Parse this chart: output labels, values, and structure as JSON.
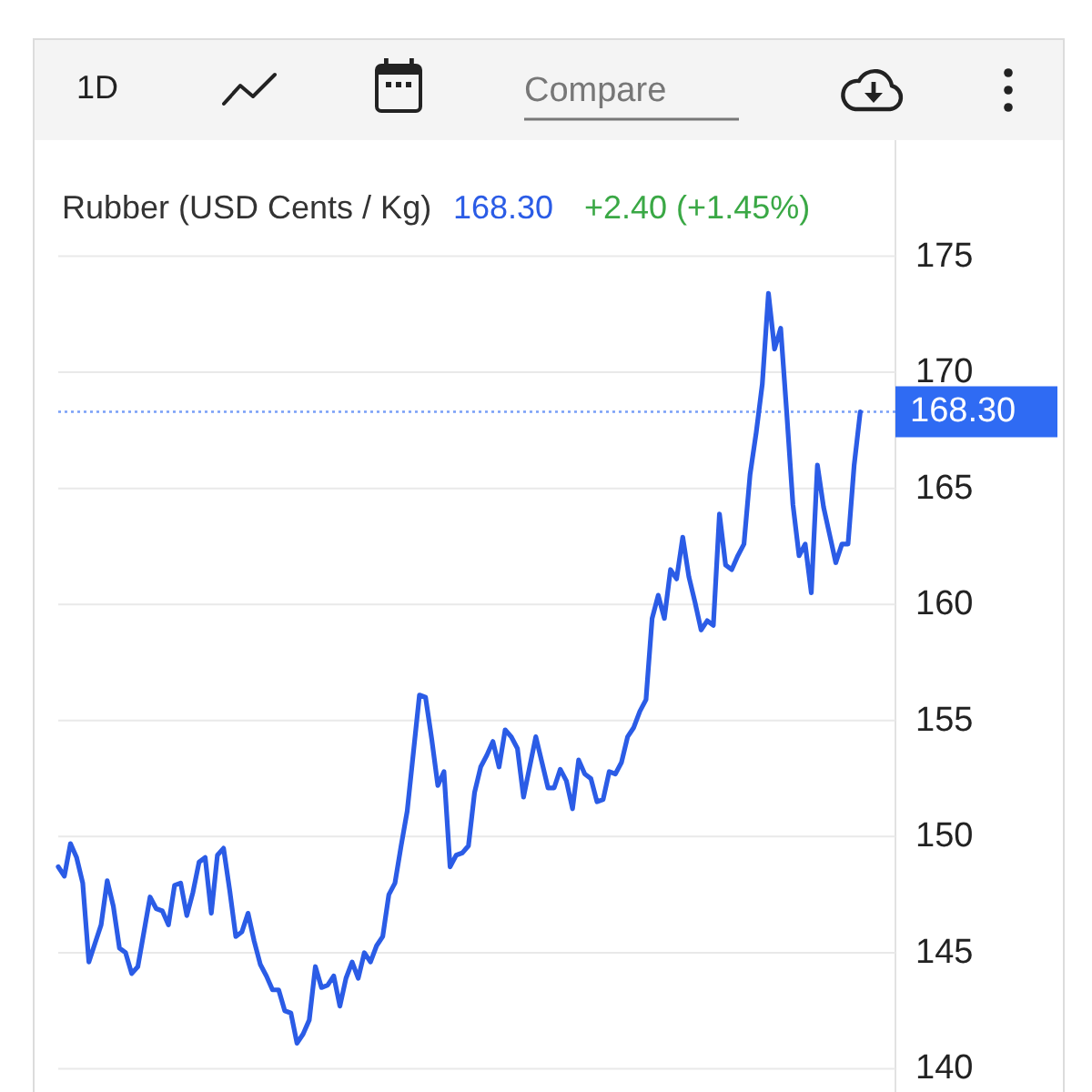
{
  "chart_data": {
    "type": "line",
    "title": "Rubber (USD Cents / Kg)",
    "annotations": [
      "1D",
      "Compare",
      "168.30",
      "+2.40 (+1.45%)"
    ],
    "categories": [
      null,
      null,
      null,
      null,
      null,
      null,
      null,
      null,
      null,
      null,
      null,
      null,
      null,
      null,
      null,
      null,
      null,
      null,
      null,
      null,
      null,
      null,
      null,
      null,
      null,
      null,
      null,
      null,
      null,
      null,
      null,
      null,
      null,
      null,
      null,
      null,
      null,
      null,
      null,
      null,
      null,
      null,
      null,
      null,
      null,
      null,
      null,
      null,
      null,
      null,
      null,
      null,
      null,
      null,
      null,
      null,
      null,
      null,
      null,
      null,
      null,
      null,
      null,
      null,
      null,
      null,
      null,
      null,
      null,
      null,
      null,
      null,
      null,
      null,
      null,
      null,
      null,
      null,
      null,
      null,
      null,
      null,
      null,
      null,
      null,
      null,
      null,
      null,
      null,
      null,
      null,
      null,
      null,
      null,
      null,
      null,
      null,
      null,
      null,
      null,
      null,
      null,
      null,
      null,
      null,
      null,
      null,
      null,
      null,
      null,
      null,
      null,
      null,
      null,
      null,
      null,
      null,
      null,
      null,
      null,
      null,
      null,
      null,
      null,
      null,
      null,
      null,
      null,
      null,
      null,
      null,
      null
    ],
    "values": [
      148.7,
      148.3,
      149.7,
      149.1,
      148.0,
      144.6,
      145.4,
      146.2,
      148.1,
      147.0,
      145.2,
      145.0,
      144.1,
      144.4,
      145.9,
      147.4,
      146.9,
      146.8,
      146.2,
      147.9,
      148.0,
      146.6,
      147.6,
      148.9,
      149.1,
      146.7,
      149.2,
      149.5,
      147.7,
      145.7,
      145.9,
      146.7,
      145.5,
      144.5,
      144.0,
      143.4,
      143.4,
      142.5,
      142.4,
      141.1,
      141.5,
      142.1,
      144.4,
      143.5,
      143.6,
      144.0,
      142.7,
      143.9,
      144.6,
      143.9,
      145.0,
      144.6,
      145.3,
      145.7,
      147.5,
      148.0,
      149.6,
      151.1,
      153.6,
      156.1,
      156.0,
      154.2,
      152.2,
      152.8,
      148.7,
      149.2,
      149.3,
      149.6,
      151.9,
      153.0,
      153.5,
      154.1,
      153.0,
      154.6,
      154.3,
      153.8,
      151.7,
      153.0,
      154.3,
      153.2,
      152.1,
      152.1,
      152.9,
      152.4,
      151.2,
      153.3,
      152.7,
      152.5,
      151.5,
      151.6,
      152.8,
      152.7,
      153.2,
      154.3,
      154.7,
      155.4,
      155.9,
      159.4,
      160.4,
      159.4,
      161.5,
      161.1,
      162.9,
      161.2,
      160.1,
      158.9,
      159.3,
      159.1,
      163.9,
      161.7,
      161.5,
      162.1,
      162.6,
      165.6,
      167.4,
      169.5,
      173.4,
      171.0,
      171.9,
      168.2,
      164.3,
      162.1,
      162.6,
      160.5,
      166.0,
      164.2,
      163.0,
      161.8,
      162.6,
      162.6,
      166.0,
      168.3
    ],
    "color": "#2b5ce6",
    "ylim": [
      139,
      180
    ],
    "yticks": [
      140,
      145,
      150,
      155,
      160,
      165,
      170,
      175
    ],
    "grid": "y",
    "tick_labels": "y",
    "ref_lines": [
      {
        "axis": "y",
        "value": 168.3,
        "label": "168.30",
        "color": "#2f6bf3",
        "line_style": "dotted"
      }
    ]
  }
}
